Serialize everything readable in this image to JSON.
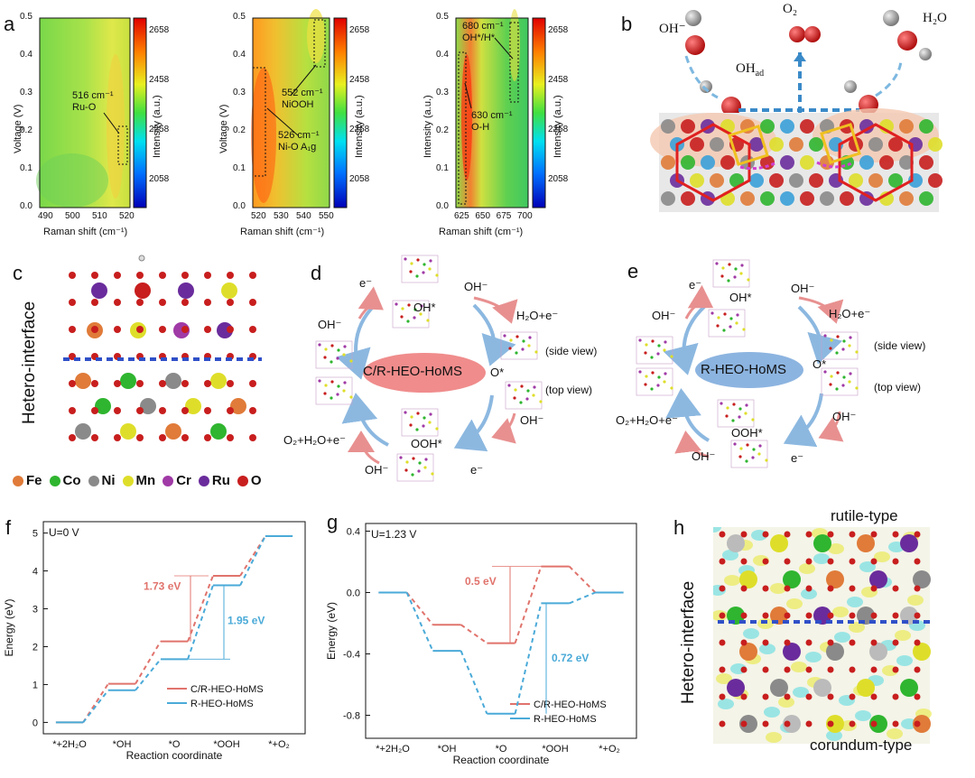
{
  "panels": {
    "a": {
      "letter": "a",
      "maps": [
        {
          "xlabel": "Raman shift (cm⁻¹)",
          "ylabel": "Voltage (V)",
          "cbar_label": "Intensity (a.u.)",
          "xticks": [
            "490",
            "500",
            "510",
            "520"
          ],
          "yticks": [
            "0.0",
            "0.1",
            "0.2",
            "0.3",
            "0.4",
            "0.5"
          ],
          "annotations": [
            {
              "line1": "516 cm⁻¹",
              "line2": "Ru-O"
            }
          ]
        },
        {
          "xlabel": "Raman shift (cm⁻¹)",
          "ylabel": "Voltage (V)",
          "cbar_label": "Intensity (a.u.)",
          "xticks": [
            "520",
            "530",
            "540",
            "550"
          ],
          "yticks": [
            "0.0",
            "0.1",
            "0.2",
            "0.3",
            "0.4",
            "0.5"
          ],
          "annotations": [
            {
              "line1": "552 cm⁻¹",
              "line2": "NiOOH"
            },
            {
              "line1": "526 cm⁻¹",
              "line2": "Ni-O A₁g"
            }
          ]
        },
        {
          "xlabel": "Raman shift (cm⁻¹)",
          "ylabel": "Intensity (a.u.)",
          "cbar_label": "Intensity (a.u.)",
          "xticks": [
            "625",
            "650",
            "675",
            "700"
          ],
          "yticks": [
            "0.0",
            "0.1",
            "0.2",
            "0.3",
            "0.4",
            "0.5"
          ],
          "annotations": [
            {
              "line1": "680 cm⁻¹",
              "line2": "OH*/H*"
            },
            {
              "line1": "630 cm⁻¹",
              "line2": "O-H"
            }
          ]
        }
      ],
      "cbar_ticks": [
        "2658",
        "2458",
        "2258",
        "2058"
      ]
    },
    "b": {
      "letter": "b",
      "labels": {
        "oh": "OH⁻",
        "o2": "O₂",
        "h2o": "H₂O",
        "ohad": "OH",
        "ohad_sub": "ad"
      }
    },
    "c": {
      "letter": "c",
      "side_label": "Hetero-interface",
      "legend": [
        {
          "name": "Fe",
          "color": "#e07b39"
        },
        {
          "name": "Co",
          "color": "#2fb52f"
        },
        {
          "name": "Ni",
          "color": "#8a8a8a"
        },
        {
          "name": "Mn",
          "color": "#dede2a"
        },
        {
          "name": "Cr",
          "color": "#a03aa6"
        },
        {
          "name": "Ru",
          "color": "#6a2c9c"
        },
        {
          "name": "O",
          "color": "#c81e1e"
        }
      ]
    },
    "d": {
      "letter": "d",
      "center": "C/R-HEO-HoMS",
      "labels": {
        "e_top": "e⁻",
        "oh_top_right": "OH⁻",
        "oh_star": "OH*",
        "oh_left": "OH⁻",
        "h2o_e": "H₂O+e⁻",
        "side_view": "(side view)",
        "o_star": "O*",
        "top_view": "(top view)",
        "oh_right": "OH⁻",
        "o2": "O₂+H₂O+e⁻",
        "ooh": "OOH*",
        "oh_bottom": "OH⁻",
        "e_bottom": "e⁻"
      }
    },
    "e": {
      "letter": "e",
      "center": "R-HEO-HoMS",
      "labels": {
        "e_top": "e⁻",
        "oh_top_right": "OH⁻",
        "oh_star": "OH*",
        "oh_left": "OH⁻",
        "h2o_e": "H₂O+e⁻",
        "side_view": "(side view)",
        "o_star": "O*",
        "top_view": "(top view)",
        "oh_right": "OH⁻",
        "o2": "O₂+H₂O+e⁻",
        "ooh": "OOH*",
        "oh_bottom": "OH⁻",
        "e_bottom": "e⁻"
      }
    },
    "f": {
      "letter": "f",
      "condition": "U=0 V",
      "diff1": "1.73 eV",
      "diff2": "1.95 eV"
    },
    "g": {
      "letter": "g",
      "condition": "U=1.23 V",
      "diff1": "0.5 eV",
      "diff2": "0.72 eV"
    },
    "h": {
      "letter": "h",
      "top": "rutile-type",
      "bottom": "corundum-type",
      "side_label": "Hetero-interface"
    }
  },
  "chart_data": [
    {
      "type": "line",
      "title": "U=0 V",
      "xlabel": "Reaction coordinate",
      "ylabel": "Energy (eV)",
      "categories": [
        "*+2H₂O",
        "*OH",
        "*O",
        "*OOH",
        "*+O₂"
      ],
      "ylim": [
        -0.3,
        5.3
      ],
      "yticks": [
        "0",
        "1",
        "2",
        "3",
        "4",
        "5"
      ],
      "series": [
        {
          "name": "C/R-HEO-HoMS",
          "color": "#e0736c",
          "values": [
            0,
            1.02,
            2.14,
            3.87,
            4.92
          ]
        },
        {
          "name": "R-HEO-HoMS",
          "color": "#4aaad8",
          "values": [
            0,
            0.85,
            1.67,
            3.62,
            4.92
          ]
        }
      ]
    },
    {
      "type": "line",
      "title": "U=1.23 V",
      "xlabel": "Reaction coordinate",
      "ylabel": "Energy (eV)",
      "categories": [
        "*+2H₂O",
        "*OH",
        "*O",
        "*OOH",
        "*+O₂"
      ],
      "ylim": [
        -0.95,
        0.45
      ],
      "yticks": [
        "0.4",
        "0.0",
        "-0.4",
        "-0.8"
      ],
      "series": [
        {
          "name": "C/R-HEO-HoMS",
          "color": "#e0736c",
          "values": [
            0,
            -0.21,
            -0.33,
            0.17,
            0
          ]
        },
        {
          "name": "R-HEO-HoMS",
          "color": "#4aaad8",
          "values": [
            0,
            -0.38,
            -0.79,
            -0.07,
            0
          ]
        }
      ]
    }
  ]
}
